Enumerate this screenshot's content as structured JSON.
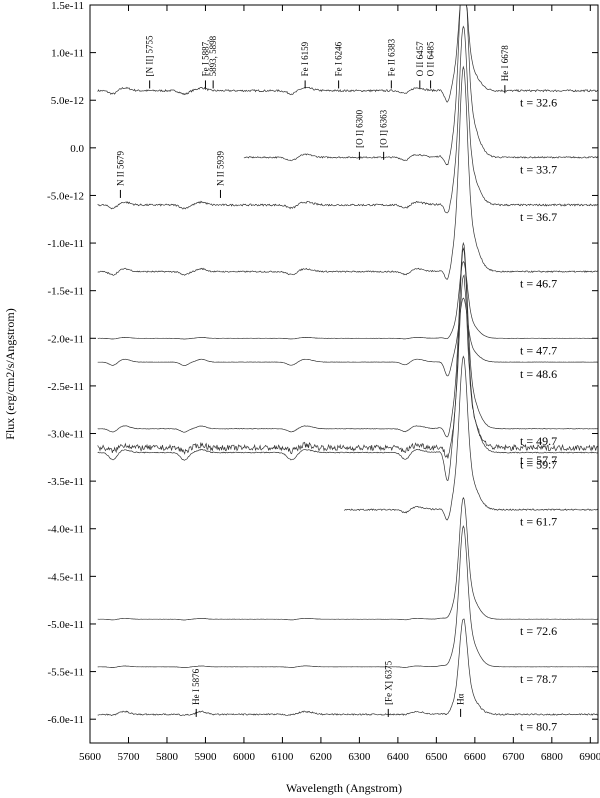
{
  "chart_data": {
    "type": "line",
    "xlabel": "Wavelength (Angstrom)",
    "ylabel": "Flux (erg/cm2/s/Angstrom)",
    "xlim": [
      5600,
      6920
    ],
    "ylim": [
      -6.25e-11,
      1.5e-11
    ],
    "x_ticks": [
      5600,
      5700,
      5800,
      5900,
      6000,
      6100,
      6200,
      6300,
      6400,
      6500,
      6600,
      6700,
      6800,
      6900
    ],
    "y_ticks": [
      {
        "v": 1.5e-11,
        "label": "1.5e-11"
      },
      {
        "v": 1e-11,
        "label": "1.0e-11"
      },
      {
        "v": 5e-12,
        "label": "5.0e-12"
      },
      {
        "v": 0,
        "label": "0.0"
      },
      {
        "v": -5e-12,
        "label": "-5.0e-12"
      },
      {
        "v": -1e-11,
        "label": "-1.0e-11"
      },
      {
        "v": -1.5e-11,
        "label": "-1.5e-11"
      },
      {
        "v": -2e-11,
        "label": "-2.0e-11"
      },
      {
        "v": -2.5e-11,
        "label": "-2.5e-11"
      },
      {
        "v": -3e-11,
        "label": "-3.0e-11"
      },
      {
        "v": -3.5e-11,
        "label": "-3.5e-11"
      },
      {
        "v": -4e-11,
        "label": "-4.0e-11"
      },
      {
        "v": -4.5e-11,
        "label": "-4.5e-11"
      },
      {
        "v": -5e-11,
        "label": "-5.0e-11"
      },
      {
        "v": -5.5e-11,
        "label": "-5.5e-11"
      },
      {
        "v": -6e-11,
        "label": "-6.0e-11"
      }
    ],
    "grid": false,
    "series": [
      {
        "epoch": "32.6",
        "x_start": 5620,
        "x_end": 6920,
        "baseline": 6e-12,
        "peak": 1.5e-11,
        "style": "strong_pcygni",
        "noise": 2e-13
      },
      {
        "epoch": "33.7",
        "x_start": 6000,
        "x_end": 6920,
        "baseline": -1e-12,
        "peak": 1.5e-11,
        "style": "pcygni",
        "noise": 1.5e-13
      },
      {
        "epoch": "36.7",
        "x_start": 5620,
        "x_end": 6920,
        "baseline": -6e-12,
        "peak": 8e-12,
        "style": "pcygni",
        "noise": 2e-13
      },
      {
        "epoch": "46.7",
        "x_start": 5620,
        "x_end": 6920,
        "baseline": -1.3e-11,
        "peak": 3e-12,
        "style": "pcygni",
        "noise": 1.5e-13
      },
      {
        "epoch": "47.7",
        "x_start": 5620,
        "x_end": 6920,
        "baseline": -2e-11,
        "peak": -1.4e-11,
        "style": "smooth",
        "noise": 2e-14
      },
      {
        "epoch": "48.6",
        "x_start": 5620,
        "x_end": 6920,
        "baseline": -2.25e-11,
        "peak": -1.75e-11,
        "style": "smooth_pcygni",
        "noise": 3e-14
      },
      {
        "epoch": "49.7",
        "x_start": 5620,
        "x_end": 6920,
        "baseline": -2.95e-11,
        "peak": -1.5e-11,
        "style": "smooth_pcygni",
        "noise": 5e-14
      },
      {
        "epoch": "57.7",
        "x_start": 5620,
        "x_end": 6920,
        "baseline": -3.15e-11,
        "peak": -1.8e-11,
        "style": "noisy_pcygni",
        "noise": 6e-13
      },
      {
        "epoch": "59.7",
        "x_start": 5620,
        "x_end": 6920,
        "baseline": -3.2e-11,
        "peak": -1.6e-11,
        "style": "deep_pcygni",
        "noise": 1e-13
      },
      {
        "epoch": "61.7",
        "x_start": 6260,
        "x_end": 6920,
        "baseline": -3.8e-11,
        "peak": -2.6e-11,
        "style": "pcygni",
        "noise": 1.5e-13
      },
      {
        "epoch": "72.6",
        "x_start": 5620,
        "x_end": 6920,
        "baseline": -4.95e-11,
        "peak": -4e-11,
        "style": "smooth",
        "noise": 2e-14
      },
      {
        "epoch": "78.7",
        "x_start": 5620,
        "x_end": 6920,
        "baseline": -5.45e-11,
        "peak": -4.35e-11,
        "style": "smooth",
        "noise": 2e-14
      },
      {
        "epoch": "80.7",
        "x_start": 5620,
        "x_end": 6920,
        "baseline": -5.95e-11,
        "peak": -5.2e-11,
        "style": "noisy",
        "noise": 1.5e-13
      }
    ],
    "annotations": [
      {
        "text": "[N II] 5755",
        "x": 5755,
        "y": 7.5e-12
      },
      {
        "text": "Fe I 5887,",
        "x": 5900,
        "y": 7.5e-12
      },
      {
        "text": "5893, 5898",
        "x": 5920,
        "y": 7.5e-12
      },
      {
        "text": "Fe I 6159",
        "x": 6159,
        "y": 7.5e-12
      },
      {
        "text": "Fe I 6246",
        "x": 6246,
        "y": 7.5e-12
      },
      {
        "text": "Fe II 6383",
        "x": 6383,
        "y": 7.5e-12
      },
      {
        "text": "O II 6457",
        "x": 6457,
        "y": 7.5e-12
      },
      {
        "text": "O II 6485",
        "x": 6485,
        "y": 7.5e-12
      },
      {
        "text": "He I 6678",
        "x": 6678,
        "y": 7e-12
      },
      {
        "text": "[O I] 6300",
        "x": 6300,
        "y": 0
      },
      {
        "text": "[O I] 6363",
        "x": 6363,
        "y": 0
      },
      {
        "text": "N II 5679",
        "x": 5679,
        "y": -4e-12
      },
      {
        "text": "N II 5939",
        "x": 5939,
        "y": -4e-12
      },
      {
        "text": "He I 5876",
        "x": 5876,
        "y": -5.85e-11
      },
      {
        "text": "[Fe X] 6375",
        "x": 6375,
        "y": -5.85e-11
      },
      {
        "text": "Hα",
        "x": 6563,
        "y": -5.85e-11
      }
    ]
  }
}
